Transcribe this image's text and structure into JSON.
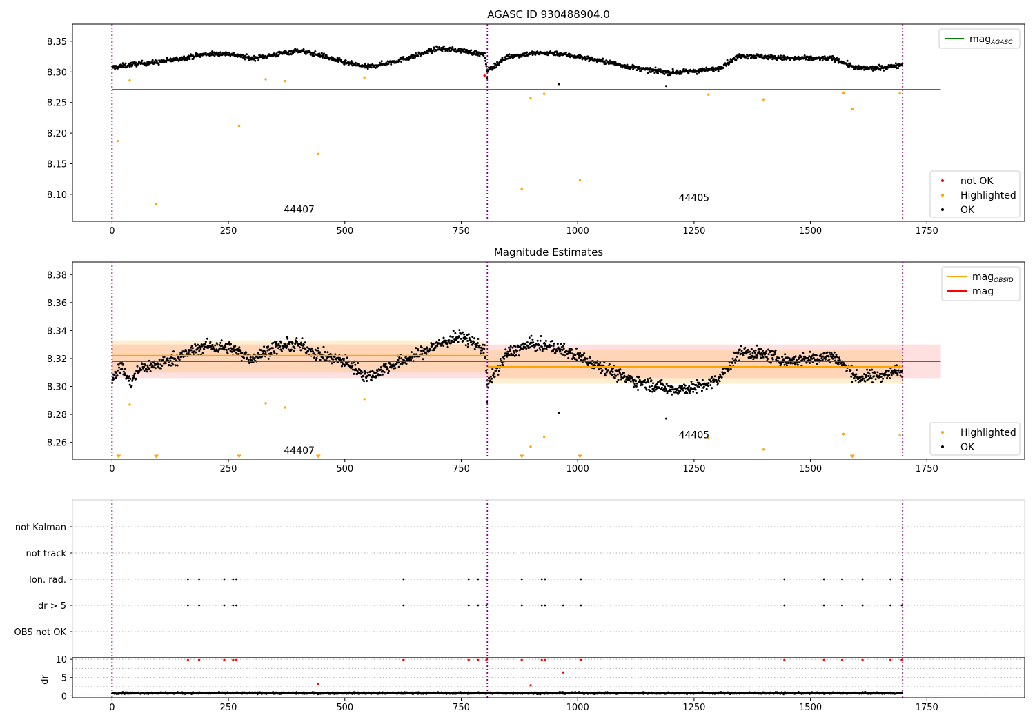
{
  "chart_data": [
    {
      "type": "scatter",
      "title": "AGASC ID 930488904.0",
      "xlim": [
        -85,
        1960
      ],
      "ylim": [
        8.056,
        8.378
      ],
      "xticks": [
        0,
        250,
        500,
        750,
        1000,
        1250,
        1500,
        1750
      ],
      "yticks": [
        8.1,
        8.15,
        8.2,
        8.25,
        8.3,
        8.35
      ],
      "ytick_labels": [
        "8.10",
        "8.15",
        "8.20",
        "8.25",
        "8.30",
        "8.35"
      ],
      "obsid_boundaries": [
        0,
        806,
        1698
      ],
      "obsid_labels": [
        {
          "text": "44407",
          "x": 402,
          "y": 8.07
        },
        {
          "text": "44405",
          "x": 1250,
          "y": 8.089
        }
      ],
      "reference_lines": [
        {
          "name": "mag",
          "subscript": "AGASC",
          "y": 8.271,
          "x_start": 0,
          "x_end": 1780,
          "color": "#008000"
        }
      ],
      "ok_profile": {
        "x": [
          0,
          50,
          100,
          150,
          200,
          250,
          300,
          350,
          400,
          450,
          500,
          550,
          600,
          650,
          700,
          750,
          800,
          806,
          850,
          900,
          950,
          1000,
          1050,
          1100,
          1150,
          1200,
          1250,
          1300,
          1350,
          1400,
          1450,
          1500,
          1550,
          1600,
          1650,
          1698
        ],
        "y": [
          8.307,
          8.313,
          8.316,
          8.322,
          8.329,
          8.33,
          8.322,
          8.328,
          8.335,
          8.327,
          8.315,
          8.308,
          8.316,
          8.326,
          8.338,
          8.335,
          8.328,
          8.302,
          8.325,
          8.33,
          8.331,
          8.325,
          8.318,
          8.31,
          8.303,
          8.299,
          8.301,
          8.305,
          8.327,
          8.325,
          8.322,
          8.322,
          8.322,
          8.306,
          8.306,
          8.312
        ],
        "spread": 0.005
      },
      "ok_outliers": [
        {
          "x": 805,
          "y": 8.29
        },
        {
          "x": 960,
          "y": 8.28
        },
        {
          "x": 1190,
          "y": 8.277
        }
      ],
      "highlighted": [
        {
          "x": 12,
          "y": 8.187
        },
        {
          "x": 38,
          "y": 8.286
        },
        {
          "x": 95,
          "y": 8.084
        },
        {
          "x": 273,
          "y": 8.212
        },
        {
          "x": 330,
          "y": 8.288
        },
        {
          "x": 372,
          "y": 8.285
        },
        {
          "x": 443,
          "y": 8.166
        },
        {
          "x": 542,
          "y": 8.291
        },
        {
          "x": 880,
          "y": 8.109
        },
        {
          "x": 899,
          "y": 8.257
        },
        {
          "x": 928,
          "y": 8.264
        },
        {
          "x": 1005,
          "y": 8.123
        },
        {
          "x": 1281,
          "y": 8.263
        },
        {
          "x": 1399,
          "y": 8.255
        },
        {
          "x": 1571,
          "y": 8.266
        },
        {
          "x": 1590,
          "y": 8.24
        },
        {
          "x": 1692,
          "y": 8.265
        }
      ],
      "not_ok": [
        {
          "x": 800,
          "y": 8.294
        }
      ],
      "legends": [
        {
          "position": "top-right",
          "entries": [
            {
              "label": "mag",
              "subscript": "AGASC",
              "kind": "line",
              "color": "#008000"
            }
          ]
        },
        {
          "position": "bottom-right",
          "entries": [
            {
              "label": "not OK",
              "kind": "dot",
              "color": "#ff0000"
            },
            {
              "label": "Highlighted",
              "kind": "dot",
              "color": "#ffa500"
            },
            {
              "label": "OK",
              "kind": "dot",
              "color": "#000000"
            }
          ]
        }
      ]
    },
    {
      "type": "scatter",
      "title": "Magnitude Estimates",
      "xlim": [
        -85,
        1960
      ],
      "ylim": [
        8.248,
        8.389
      ],
      "xticks": [
        0,
        250,
        500,
        750,
        1000,
        1250,
        1500,
        1750
      ],
      "yticks": [
        8.26,
        8.28,
        8.3,
        8.32,
        8.34,
        8.36,
        8.38
      ],
      "ytick_labels": [
        "8.26",
        "8.28",
        "8.30",
        "8.32",
        "8.34",
        "8.36",
        "8.38"
      ],
      "obsid_boundaries": [
        0,
        806,
        1698
      ],
      "obsid_labels": [
        {
          "text": "44407",
          "x": 402,
          "y": 8.252
        },
        {
          "text": "44405",
          "x": 1250,
          "y": 8.263
        }
      ],
      "reference_lines": [
        {
          "name": "mag",
          "y": 8.318,
          "x_start": 0,
          "x_end": 1780,
          "band": [
            8.306,
            8.33
          ],
          "color": "#ff0000"
        },
        {
          "name": "mag",
          "subscript": "OBSID",
          "y": 8.322,
          "x_start": 0,
          "x_end": 806,
          "band": [
            8.31,
            8.333
          ],
          "color": "#ffa500"
        },
        {
          "name": "mag",
          "subscript": "OBSID",
          "y": 8.314,
          "x_start": 806,
          "x_end": 1698,
          "band": [
            8.302,
            8.326
          ],
          "color": "#ffa500"
        }
      ],
      "ok_profile": {
        "x": [
          0,
          20,
          40,
          60,
          100,
          150,
          200,
          250,
          300,
          350,
          400,
          450,
          500,
          550,
          600,
          650,
          700,
          750,
          800,
          806,
          850,
          900,
          950,
          1000,
          1050,
          1100,
          1150,
          1200,
          1250,
          1300,
          1350,
          1400,
          1450,
          1500,
          1550,
          1600,
          1650,
          1698
        ],
        "y": [
          8.307,
          8.314,
          8.302,
          8.313,
          8.316,
          8.322,
          8.329,
          8.328,
          8.32,
          8.328,
          8.33,
          8.322,
          8.318,
          8.307,
          8.315,
          8.322,
          8.33,
          8.336,
          8.327,
          8.301,
          8.324,
          8.33,
          8.328,
          8.322,
          8.315,
          8.306,
          8.302,
          8.298,
          8.299,
          8.304,
          8.325,
          8.323,
          8.318,
          8.32,
          8.322,
          8.306,
          8.308,
          8.312
        ],
        "spread": 0.006
      },
      "ok_outliers": [
        {
          "x": 805,
          "y": 8.289
        },
        {
          "x": 960,
          "y": 8.281
        },
        {
          "x": 1190,
          "y": 8.277
        }
      ],
      "highlighted": [
        {
          "x": 38,
          "y": 8.287
        },
        {
          "x": 330,
          "y": 8.288
        },
        {
          "x": 372,
          "y": 8.285
        },
        {
          "x": 542,
          "y": 8.291
        },
        {
          "x": 899,
          "y": 8.257
        },
        {
          "x": 928,
          "y": 8.264
        },
        {
          "x": 1281,
          "y": 8.263
        },
        {
          "x": 1399,
          "y": 8.255
        },
        {
          "x": 1571,
          "y": 8.266
        },
        {
          "x": 1692,
          "y": 8.265
        }
      ],
      "below_range_markers": [
        14,
        95,
        273,
        443,
        880,
        1005,
        1590
      ],
      "legends": [
        {
          "position": "top-right",
          "entries": [
            {
              "label": "mag",
              "subscript": "OBSID",
              "kind": "line",
              "color": "#ffa500"
            },
            {
              "label": "mag",
              "kind": "line",
              "color": "#ff0000"
            }
          ]
        },
        {
          "position": "bottom-right",
          "entries": [
            {
              "label": "Highlighted",
              "kind": "dot",
              "color": "#ffa500"
            },
            {
              "label": "OK",
              "kind": "dot",
              "color": "#000000"
            }
          ]
        }
      ]
    },
    {
      "type": "scatter",
      "title": "",
      "xlim": [
        -85,
        1960
      ],
      "categories": [
        "not Kalman",
        "not track",
        "Ion. rad.",
        "dr > 5",
        "OBS not OK"
      ],
      "flags": {
        "Ion. rad.": [
          163,
          187,
          241,
          260,
          267,
          626,
          766,
          786,
          804,
          880,
          923,
          930,
          1007,
          1444,
          1529,
          1568,
          1612,
          1672,
          1696
        ],
        "dr > 5": [
          163,
          187,
          241,
          260,
          267,
          626,
          766,
          786,
          804,
          880,
          923,
          930,
          969,
          1007,
          1444,
          1529,
          1568,
          1612,
          1672,
          1696
        ]
      },
      "obsid_boundaries": [
        0,
        806,
        1698
      ]
    },
    {
      "type": "scatter",
      "title": "",
      "xlim": [
        -85,
        1960
      ],
      "ylim": [
        -0.5,
        10.4
      ],
      "ylabel": "dr",
      "xticks": [
        0,
        250,
        500,
        750,
        1000,
        1250,
        1500,
        1750
      ],
      "yticks": [
        0,
        5,
        10
      ],
      "high_dr": [
        {
          "x": 163,
          "y": 9.8
        },
        {
          "x": 187,
          "y": 9.8
        },
        {
          "x": 241,
          "y": 9.8
        },
        {
          "x": 260,
          "y": 9.8
        },
        {
          "x": 267,
          "y": 9.8
        },
        {
          "x": 626,
          "y": 9.8
        },
        {
          "x": 766,
          "y": 9.8
        },
        {
          "x": 786,
          "y": 9.8
        },
        {
          "x": 804,
          "y": 9.8
        },
        {
          "x": 880,
          "y": 9.8
        },
        {
          "x": 923,
          "y": 9.8
        },
        {
          "x": 930,
          "y": 9.8
        },
        {
          "x": 969,
          "y": 6.4
        },
        {
          "x": 1007,
          "y": 9.8
        },
        {
          "x": 1444,
          "y": 9.8
        },
        {
          "x": 1529,
          "y": 9.8
        },
        {
          "x": 1568,
          "y": 9.8
        },
        {
          "x": 1612,
          "y": 9.8
        },
        {
          "x": 1672,
          "y": 9.8
        },
        {
          "x": 1696,
          "y": 9.8
        },
        {
          "x": 443,
          "y": 3.3
        },
        {
          "x": 899,
          "y": 2.9
        }
      ],
      "baseline_dr": {
        "x_start": 0,
        "x_end": 1698,
        "mean": 0.8,
        "spread": 0.35
      },
      "obsid_boundaries": [
        0,
        806,
        1698
      ]
    }
  ]
}
